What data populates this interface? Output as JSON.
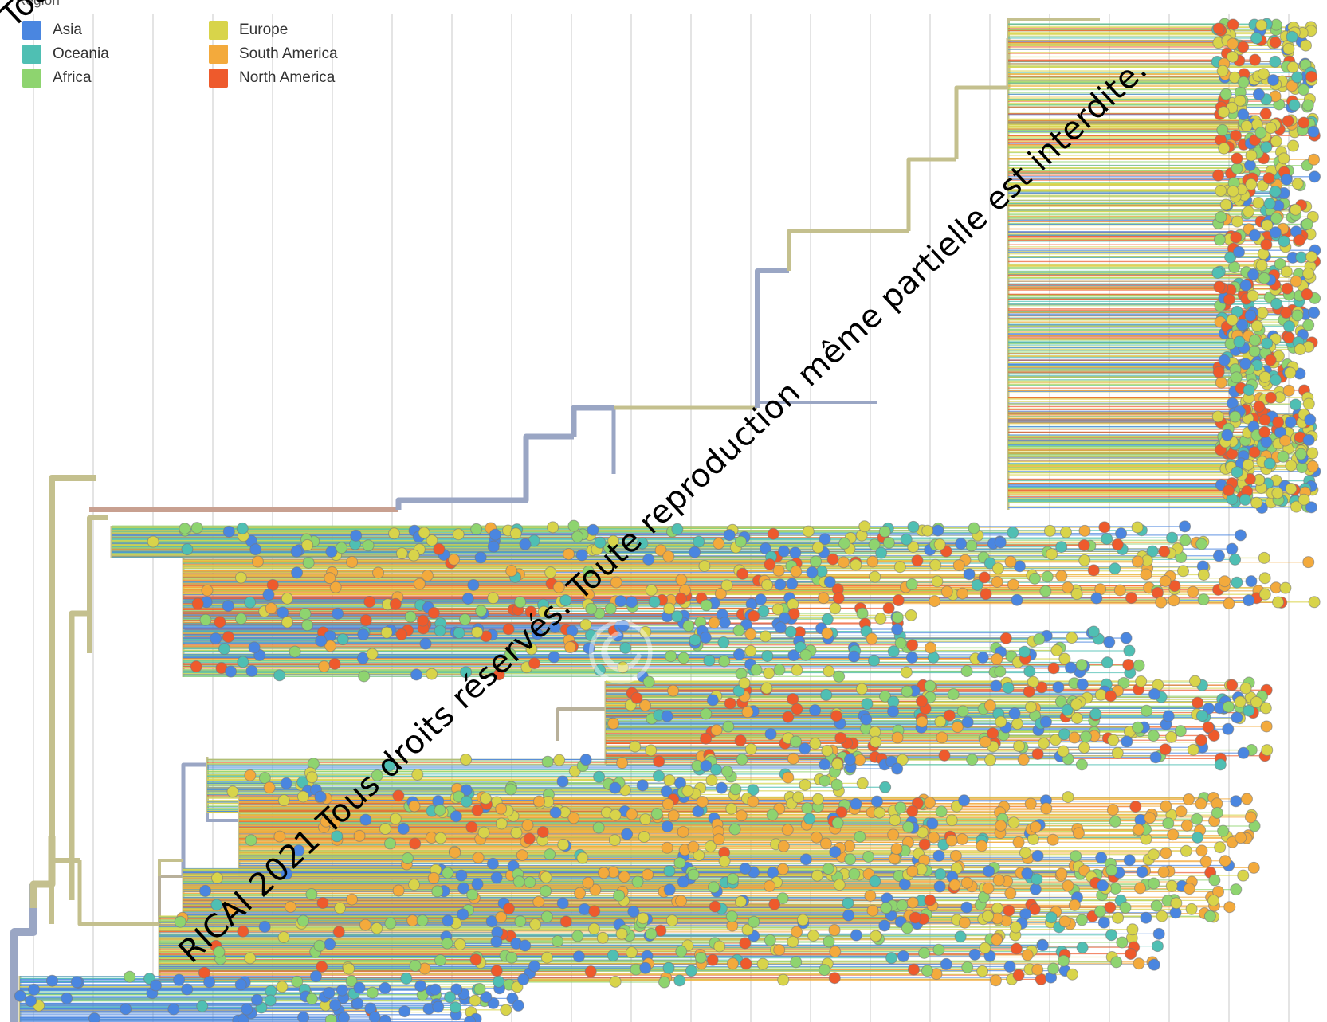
{
  "legend": {
    "title": "Region",
    "items": [
      {
        "label": "Asia",
        "color": "#4a86e0"
      },
      {
        "label": "Oceania",
        "color": "#4fbfb3"
      },
      {
        "label": "Africa",
        "color": "#8ed46f"
      },
      {
        "label": "Europe",
        "color": "#d8d44a"
      },
      {
        "label": "South America",
        "color": "#f3aa3c"
      },
      {
        "label": "North America",
        "color": "#ee5a2c"
      }
    ]
  },
  "watermark": {
    "text": "RICAI 2021 Tous droits réservés. Toute reproduction même partielle est interdite.",
    "corner_text": "Toute"
  },
  "tree": {
    "trunk_color": "#9aa6c4",
    "backbone_color": "#c4c08e",
    "grid_color": "#e4e4e4"
  }
}
